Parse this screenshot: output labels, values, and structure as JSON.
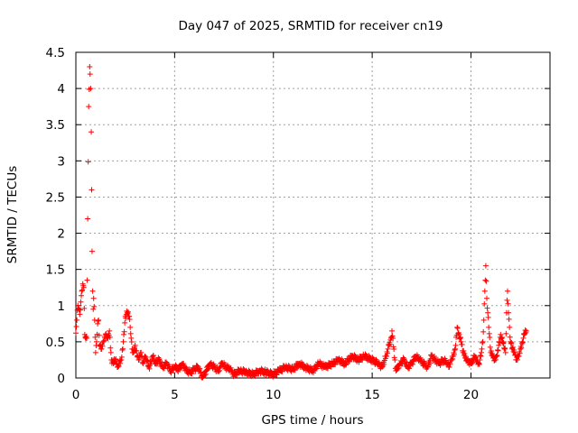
{
  "chart_data": {
    "type": "scatter",
    "title": "Day 047 of 2025, SRMTID for receiver cn19",
    "xlabel": "GPS time / hours",
    "ylabel": "SRMTID / TECUs",
    "xlim": [
      0,
      24
    ],
    "ylim": [
      0,
      4.5
    ],
    "xticks": [
      0,
      5,
      10,
      15,
      20
    ],
    "xtick_labels": [
      "0",
      "5",
      "10",
      "15",
      "20"
    ],
    "yticks": [
      0,
      0.5,
      1,
      1.5,
      2,
      2.5,
      3,
      3.5,
      4,
      4.5
    ],
    "ytick_labels": [
      "0",
      "0.5",
      "1",
      "1.5",
      "2",
      "2.5",
      "3",
      "3.5",
      "4",
      "4.5"
    ],
    "grid": true,
    "marker": "+",
    "color": "#ff0000",
    "series": [
      {
        "name": "SRMTID",
        "x": [
          0.0,
          0.05,
          0.1,
          0.15,
          0.2,
          0.25,
          0.3,
          0.35,
          0.4,
          0.45,
          0.5,
          0.55,
          0.6,
          0.65,
          0.7,
          0.72,
          0.75,
          0.78,
          0.8,
          0.82,
          0.85,
          0.88,
          0.9,
          0.95,
          1.0,
          1.05,
          1.1,
          1.15,
          1.2,
          1.3,
          1.4,
          1.5,
          1.6,
          1.7,
          1.8,
          1.9,
          2.0,
          2.1,
          2.2,
          2.3,
          2.4,
          2.5,
          2.6,
          2.7,
          2.75,
          2.8,
          2.85,
          2.9,
          3.0,
          3.1,
          3.2,
          3.3,
          3.4,
          3.5,
          3.6,
          3.7,
          3.8,
          3.9,
          4.0,
          4.2,
          4.4,
          4.6,
          4.8,
          5.0,
          5.2,
          5.4,
          5.6,
          5.8,
          6.0,
          6.2,
          6.4,
          6.6,
          6.8,
          7.0,
          7.2,
          7.4,
          7.6,
          7.8,
          8.0,
          8.3,
          8.6,
          9.0,
          9.3,
          9.6,
          10.0,
          10.3,
          10.6,
          11.0,
          11.3,
          11.6,
          12.0,
          12.3,
          12.6,
          13.0,
          13.3,
          13.6,
          14.0,
          14.3,
          14.6,
          15.0,
          15.3,
          15.5,
          15.7,
          15.85,
          15.95,
          16.0,
          16.2,
          16.4,
          16.6,
          16.8,
          17.0,
          17.2,
          17.4,
          17.6,
          17.8,
          18.0,
          18.2,
          18.4,
          18.6,
          18.8,
          18.9,
          19.0,
          19.1,
          19.2,
          19.3,
          19.4,
          19.5,
          19.6,
          19.8,
          20.0,
          20.2,
          20.3,
          20.4,
          20.5,
          20.55,
          20.6,
          20.65,
          20.7,
          20.75,
          20.8,
          20.9,
          21.0,
          21.1,
          21.2,
          21.3,
          21.4,
          21.5,
          21.6,
          21.7,
          21.75,
          21.8,
          21.85,
          21.9,
          21.95,
          22.0,
          22.1,
          22.2,
          22.3,
          22.4,
          22.5,
          22.6,
          22.7,
          22.8
        ],
        "y": [
          0.62,
          0.8,
          1.0,
          0.95,
          0.88,
          1.05,
          1.2,
          1.3,
          1.25,
          0.6,
          0.55,
          0.55,
          2.2,
          3.75,
          4.3,
          4.2,
          4.0,
          3.4,
          2.6,
          1.75,
          1.2,
          0.95,
          1.1,
          0.8,
          0.35,
          0.5,
          0.75,
          0.8,
          0.45,
          0.4,
          0.5,
          0.6,
          0.55,
          0.65,
          0.25,
          0.2,
          0.25,
          0.15,
          0.2,
          0.25,
          0.5,
          0.85,
          0.9,
          0.85,
          0.7,
          0.55,
          0.4,
          0.35,
          0.45,
          0.3,
          0.25,
          0.35,
          0.2,
          0.3,
          0.25,
          0.15,
          0.2,
          0.3,
          0.2,
          0.25,
          0.15,
          0.2,
          0.1,
          0.15,
          0.12,
          0.2,
          0.1,
          0.08,
          0.12,
          0.15,
          0.0,
          0.1,
          0.2,
          0.15,
          0.1,
          0.2,
          0.15,
          0.12,
          0.05,
          0.1,
          0.08,
          0.05,
          0.1,
          0.08,
          0.05,
          0.1,
          0.15,
          0.12,
          0.2,
          0.15,
          0.1,
          0.2,
          0.15,
          0.2,
          0.25,
          0.2,
          0.3,
          0.25,
          0.3,
          0.25,
          0.2,
          0.15,
          0.3,
          0.45,
          0.55,
          0.65,
          0.1,
          0.2,
          0.25,
          0.15,
          0.2,
          0.3,
          0.25,
          0.2,
          0.15,
          0.3,
          0.25,
          0.2,
          0.25,
          0.2,
          0.15,
          0.25,
          0.3,
          0.4,
          0.7,
          0.6,
          0.5,
          0.35,
          0.25,
          0.2,
          0.3,
          0.25,
          0.2,
          0.3,
          0.4,
          0.5,
          0.8,
          1.2,
          1.55,
          1.1,
          0.7,
          0.35,
          0.3,
          0.25,
          0.3,
          0.45,
          0.6,
          0.5,
          0.4,
          0.35,
          0.9,
          1.2,
          0.9,
          0.7,
          0.5,
          0.4,
          0.35,
          0.25,
          0.3,
          0.4,
          0.5,
          0.6,
          0.65
        ]
      }
    ]
  }
}
